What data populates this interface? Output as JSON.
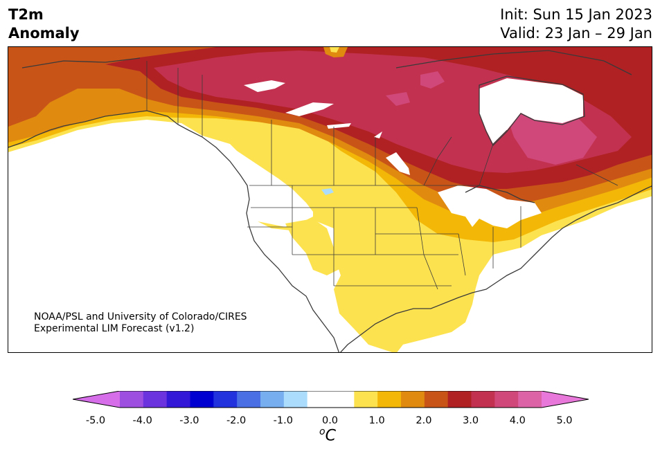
{
  "header": {
    "title_line1": "T2m",
    "title_line2": "Anomaly",
    "init": "Init: Sun 15 Jan 2023",
    "valid": "Valid: 23 Jan – 29 Jan"
  },
  "credit": {
    "line1": "NOAA/PSL and University of Colorado/CIRES",
    "line2": "Experimental LIM Forecast (v1.2)"
  },
  "colorbar": {
    "unit_base": "C",
    "unit_sup": "o",
    "tick_labels": [
      "-5.0",
      "-4.0",
      "-3.0",
      "-2.0",
      "-1.0",
      "0.0",
      "1.0",
      "2.0",
      "3.0",
      "4.0",
      "5.0"
    ],
    "colors": [
      "#d56ee8",
      "#9d4fe0",
      "#6b33de",
      "#3418d8",
      "#0000d0",
      "#2233de",
      "#4a6ee4",
      "#76aef0",
      "#acdcfb",
      "#ffffff",
      "#ffffff",
      "#fde24f",
      "#f3b807",
      "#e08b0f",
      "#c85418",
      "#b02124",
      "#c23250",
      "#d04879",
      "#dc63a6",
      "#e878d9"
    ]
  },
  "map": {
    "levels_colors": {
      "0.5-1.0": "#fde24f",
      "1.0-1.5": "#f3b807",
      "1.5-2.0": "#e08b0f",
      "2.0-2.5": "#c85418",
      "2.5-3.0": "#b02124",
      "3.0-3.5": "#c23250",
      "3.5-4.0": "#d04879",
      "cool_lake": "#acdcfb"
    }
  }
}
